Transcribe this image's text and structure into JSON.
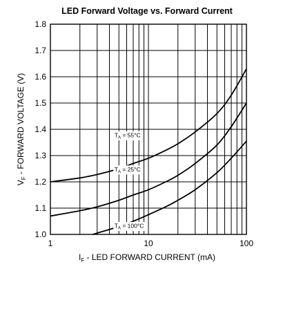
{
  "chart_data": {
    "type": "line",
    "title": "LED Forward Voltage vs. Forward Current",
    "xlabel": {
      "main": "I",
      "sub": "F",
      "rest": " - LED FORWARD CURRENT (mA)"
    },
    "ylabel": {
      "main": "V",
      "sub": "F",
      "rest": " - FORWARD VOLTAGE (V)"
    },
    "xscale": "log",
    "xlim": [
      1,
      100
    ],
    "ylim": [
      1.0,
      1.8
    ],
    "x_ticks": [
      1,
      10,
      100
    ],
    "x_tick_labels": [
      "1",
      "10",
      "100"
    ],
    "y_ticks": [
      1.0,
      1.1,
      1.2,
      1.3,
      1.4,
      1.5,
      1.6,
      1.7,
      1.8
    ],
    "y_tick_labels": [
      "1.0",
      "1.1",
      "1.2",
      "1.3",
      "1.4",
      "1.5",
      "1.6",
      "1.7",
      "1.8"
    ],
    "grid": true,
    "series": [
      {
        "name": "TA = 55°C",
        "label": {
          "main": "T",
          "sub": "A",
          "rest": " = 55°C",
          "at": [
            4.5,
            1.37
          ]
        },
        "x": [
          1,
          2,
          3,
          5,
          7,
          10,
          15,
          20,
          30,
          50,
          70,
          100
        ],
        "y": [
          1.2,
          1.215,
          1.228,
          1.25,
          1.27,
          1.29,
          1.32,
          1.345,
          1.39,
          1.46,
          1.53,
          1.63
        ]
      },
      {
        "name": "TA = 25°C",
        "label": {
          "main": "T",
          "sub": "A",
          "rest": " = 25°C",
          "at": [
            4.5,
            1.24
          ]
        },
        "x": [
          1,
          2,
          3,
          5,
          7,
          10,
          15,
          20,
          30,
          50,
          70,
          100
        ],
        "y": [
          1.07,
          1.09,
          1.105,
          1.13,
          1.15,
          1.17,
          1.2,
          1.225,
          1.27,
          1.34,
          1.41,
          1.5
        ]
      },
      {
        "name": "TA = 100°C",
        "label": {
          "main": "T",
          "sub": "A",
          "rest": " = 100°C",
          "at": [
            4.5,
            1.025
          ]
        },
        "x": [
          2.7,
          3,
          5,
          7,
          10,
          15,
          20,
          30,
          50,
          70,
          100
        ],
        "y": [
          1.0,
          1.005,
          1.03,
          1.05,
          1.075,
          1.105,
          1.13,
          1.17,
          1.235,
          1.29,
          1.355
        ]
      }
    ]
  }
}
